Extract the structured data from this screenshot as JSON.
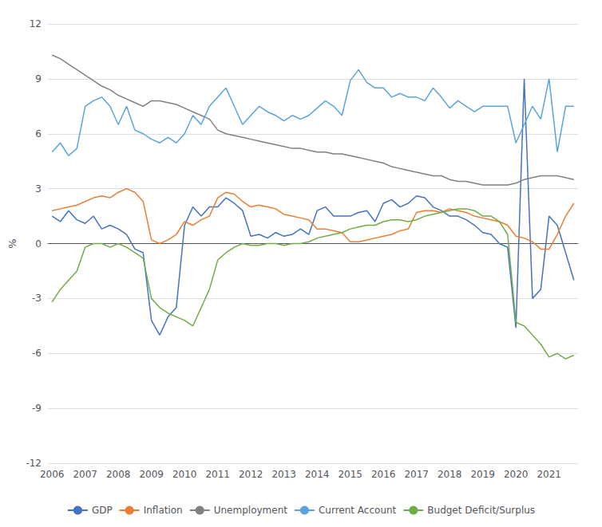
{
  "chart_data": {
    "type": "line",
    "ylabel": "%",
    "categories": [
      "2006",
      null,
      null,
      null,
      "2007",
      null,
      null,
      null,
      "2008",
      null,
      null,
      null,
      "2009",
      null,
      null,
      null,
      "2010",
      null,
      null,
      null,
      "2011",
      null,
      null,
      null,
      "2012",
      null,
      null,
      null,
      "2013",
      null,
      null,
      null,
      "2014",
      null,
      null,
      null,
      "2015",
      null,
      null,
      null,
      "2016",
      null,
      null,
      null,
      "2017",
      null,
      null,
      null,
      "2018",
      null,
      null,
      null,
      "2019",
      null,
      null,
      null,
      "2020",
      null,
      null,
      null,
      "2021",
      null,
      null,
      null
    ],
    "series": [
      {
        "name": "GDP",
        "color": "#4472C4",
        "values": [
          1.5,
          1.2,
          1.8,
          1.3,
          1.1,
          1.5,
          0.8,
          1.0,
          0.8,
          0.5,
          -0.3,
          -0.5,
          -4.2,
          -5.0,
          -4.0,
          -3.5,
          1.0,
          2.0,
          1.5,
          2.0,
          2.0,
          2.5,
          2.2,
          1.8,
          0.4,
          0.5,
          0.3,
          0.6,
          0.4,
          0.5,
          0.8,
          0.5,
          1.8,
          2.0,
          1.5,
          1.5,
          1.5,
          1.7,
          1.8,
          1.2,
          2.2,
          2.4,
          2.0,
          2.2,
          2.6,
          2.5,
          2.0,
          1.8,
          1.5,
          1.5,
          1.3,
          1.0,
          0.6,
          0.5,
          0.0,
          -0.2,
          -4.6,
          9.0,
          -3.0,
          -2.5,
          1.5,
          1.0,
          -0.5,
          -2.0
        ]
      },
      {
        "name": "Inflation",
        "color": "#ED7D31",
        "values": [
          1.8,
          1.9,
          2.0,
          2.1,
          2.3,
          2.5,
          2.6,
          2.5,
          2.8,
          3.0,
          2.8,
          2.3,
          0.2,
          0.0,
          0.2,
          0.5,
          1.2,
          1.0,
          1.3,
          1.5,
          2.5,
          2.8,
          2.7,
          2.3,
          2.0,
          2.1,
          2.0,
          1.9,
          1.6,
          1.5,
          1.4,
          1.3,
          0.8,
          0.8,
          0.7,
          0.6,
          0.1,
          0.1,
          0.2,
          0.3,
          0.4,
          0.5,
          0.7,
          0.8,
          1.7,
          1.8,
          1.8,
          1.7,
          1.9,
          1.8,
          1.7,
          1.5,
          1.4,
          1.3,
          1.2,
          1.0,
          0.4,
          0.3,
          0.1,
          -0.3,
          -0.3,
          0.5,
          1.5,
          2.2
        ]
      },
      {
        "name": "Unemployment",
        "color": "#808080",
        "values": [
          10.3,
          10.1,
          9.8,
          9.5,
          9.2,
          8.9,
          8.6,
          8.4,
          8.1,
          7.9,
          7.7,
          7.5,
          7.8,
          7.8,
          7.7,
          7.6,
          7.4,
          7.2,
          7.0,
          6.8,
          6.2,
          6.0,
          5.9,
          5.8,
          5.7,
          5.6,
          5.5,
          5.4,
          5.3,
          5.2,
          5.2,
          5.1,
          5.0,
          5.0,
          4.9,
          4.9,
          4.8,
          4.7,
          4.6,
          4.5,
          4.4,
          4.2,
          4.1,
          4.0,
          3.9,
          3.8,
          3.7,
          3.7,
          3.5,
          3.4,
          3.4,
          3.3,
          3.2,
          3.2,
          3.2,
          3.2,
          3.3,
          3.5,
          3.6,
          3.7,
          3.7,
          3.7,
          3.6,
          3.5
        ]
      },
      {
        "name": "Current Account",
        "color": "#5BA3DC",
        "values": [
          5.0,
          5.5,
          4.8,
          5.2,
          7.5,
          7.8,
          8.0,
          7.5,
          6.5,
          7.5,
          6.2,
          6.0,
          5.7,
          5.5,
          5.8,
          5.5,
          6.0,
          7.0,
          6.5,
          7.5,
          8.0,
          8.5,
          7.5,
          6.5,
          7.0,
          7.5,
          7.2,
          7.0,
          6.7,
          7.0,
          6.8,
          7.0,
          7.4,
          7.8,
          7.5,
          7.0,
          8.9,
          9.5,
          8.8,
          8.5,
          8.5,
          8.0,
          8.2,
          8.0,
          8.0,
          7.8,
          8.5,
          8.0,
          7.4,
          7.8,
          7.5,
          7.2,
          7.5,
          7.5,
          7.5,
          7.5,
          5.5,
          6.5,
          7.5,
          6.8,
          9.0,
          5.0,
          7.5,
          7.5
        ]
      },
      {
        "name": "Budget Deficit/Surplus",
        "color": "#70AD47",
        "values": [
          -3.2,
          -2.5,
          -2.0,
          -1.5,
          -0.2,
          0.0,
          0.0,
          -0.2,
          0.0,
          -0.2,
          -0.5,
          -0.8,
          -3.0,
          -3.5,
          -3.8,
          -4.0,
          -4.2,
          -4.5,
          -3.5,
          -2.5,
          -0.9,
          -0.5,
          -0.2,
          0.0,
          -0.1,
          -0.1,
          0.0,
          0.0,
          -0.1,
          0.0,
          0.0,
          0.1,
          0.3,
          0.4,
          0.5,
          0.6,
          0.8,
          0.9,
          1.0,
          1.0,
          1.2,
          1.3,
          1.3,
          1.2,
          1.3,
          1.5,
          1.6,
          1.7,
          1.8,
          1.9,
          1.9,
          1.8,
          1.5,
          1.5,
          1.2,
          0.5,
          -4.3,
          -4.5,
          -5.0,
          -5.5,
          -6.2,
          -6.0,
          -6.3,
          -6.1
        ]
      }
    ],
    "ylim": [
      -12,
      12
    ],
    "yticks": [
      -12,
      -9,
      -6,
      -3,
      0,
      3,
      6,
      9,
      12
    ],
    "grid": true,
    "legend": "bottom"
  }
}
